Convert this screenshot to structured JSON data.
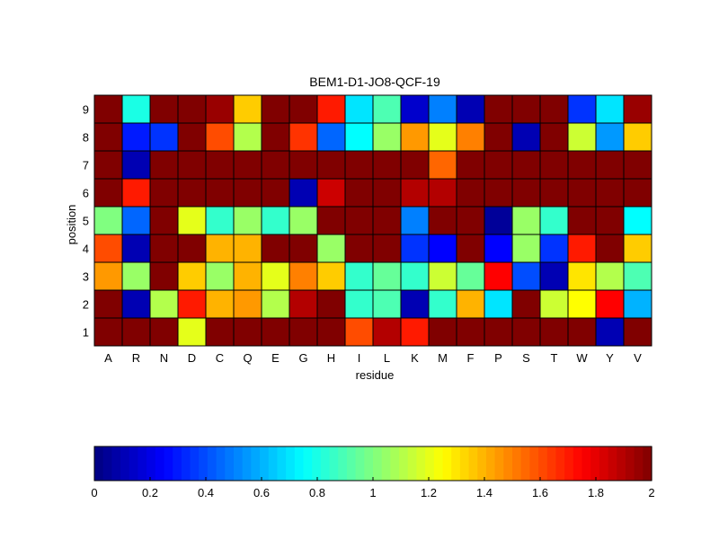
{
  "chart_data": {
    "type": "heatmap",
    "title": "BEM1-D1-JO8-QCF-19",
    "xlabel": "residue",
    "ylabel": "position",
    "x_categories": [
      "A",
      "R",
      "N",
      "D",
      "C",
      "Q",
      "E",
      "G",
      "H",
      "I",
      "L",
      "K",
      "M",
      "F",
      "P",
      "S",
      "T",
      "W",
      "Y",
      "V"
    ],
    "y_categories": [
      "1",
      "2",
      "3",
      "4",
      "5",
      "6",
      "7",
      "8",
      "9"
    ],
    "values": [
      [
        2.0,
        2.0,
        2.0,
        1.2,
        2.0,
        2.0,
        2.0,
        2.0,
        2.0,
        1.6,
        1.9,
        1.7,
        2.0,
        2.0,
        2.0,
        2.0,
        2.0,
        2.0,
        0.1,
        2.0
      ],
      [
        2.0,
        0.1,
        1.1,
        1.7,
        1.4,
        1.45,
        1.1,
        1.9,
        2.0,
        0.85,
        0.9,
        0.1,
        0.85,
        1.4,
        0.7,
        2.0,
        1.15,
        1.25,
        1.75,
        0.6
      ],
      [
        1.45,
        1.05,
        2.0,
        1.35,
        1.05,
        1.4,
        1.2,
        1.5,
        1.35,
        0.85,
        0.95,
        0.85,
        1.15,
        0.95,
        1.75,
        0.4,
        0.1,
        1.3,
        1.1,
        0.9
      ],
      [
        1.6,
        0.1,
        2.0,
        2.0,
        1.4,
        1.4,
        2.0,
        2.0,
        1.05,
        2.0,
        2.0,
        0.35,
        0.25,
        2.0,
        0.25,
        1.05,
        0.35,
        1.7,
        2.0,
        1.35
      ],
      [
        1.0,
        0.45,
        2.0,
        1.2,
        0.85,
        1.05,
        0.85,
        1.05,
        2.0,
        2.0,
        2.0,
        0.5,
        2.0,
        2.0,
        0.05,
        1.05,
        0.85,
        2.0,
        2.0,
        0.75
      ],
      [
        2.0,
        1.7,
        2.0,
        2.0,
        2.0,
        2.0,
        2.0,
        0.1,
        1.85,
        2.0,
        2.0,
        1.9,
        1.9,
        2.0,
        2.0,
        2.0,
        2.0,
        2.0,
        2.0,
        2.0
      ],
      [
        2.0,
        0.1,
        2.0,
        2.0,
        2.0,
        2.0,
        2.0,
        2.0,
        2.0,
        2.0,
        2.0,
        2.0,
        1.55,
        2.0,
        2.0,
        2.0,
        2.0,
        2.0,
        2.0,
        2.0
      ],
      [
        2.0,
        0.3,
        0.35,
        2.0,
        1.6,
        1.1,
        2.0,
        1.65,
        0.45,
        0.75,
        1.05,
        1.45,
        1.2,
        1.5,
        2.0,
        0.1,
        2.0,
        1.15,
        0.55,
        1.35
      ],
      [
        2.0,
        0.8,
        2.0,
        2.0,
        1.95,
        1.35,
        2.0,
        2.0,
        1.7,
        0.7,
        0.9,
        0.15,
        0.5,
        0.1,
        2.0,
        2.0,
        2.0,
        0.35,
        0.7,
        1.95
      ]
    ],
    "colormap": "jet",
    "clim": [
      0,
      2
    ],
    "colorbar": {
      "placement": "bottom",
      "ticks": [
        "0",
        "0.2",
        "0.4",
        "0.6",
        "0.8",
        "1",
        "1.2",
        "1.4",
        "1.6",
        "1.8",
        "2"
      ]
    },
    "grid": true,
    "colors": {
      "cell_border": "#000000",
      "background": "#ffffff"
    }
  }
}
